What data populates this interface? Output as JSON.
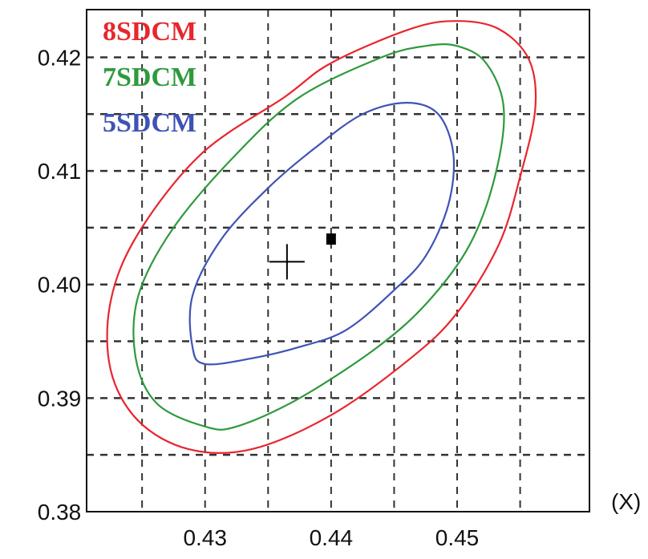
{
  "chart_data": {
    "type": "scatter",
    "xlabel": "(X)",
    "ylabel": "",
    "xlim": [
      0.4206,
      0.4605
    ],
    "ylim": [
      0.38,
      0.4242
    ],
    "x_ticks": [
      0.43,
      0.44,
      0.45
    ],
    "x_tick_labels": [
      "0.43",
      "0.44",
      "0.45"
    ],
    "y_ticks": [
      0.38,
      0.39,
      0.4,
      0.41,
      0.42
    ],
    "y_tick_labels": [
      "0.38",
      "0.39",
      "0.40",
      "0.41",
      "0.42"
    ],
    "grid": true,
    "grid_x": [
      0.425,
      0.43,
      0.435,
      0.44,
      0.445,
      0.45,
      0.455
    ],
    "grid_y": [
      0.385,
      0.39,
      0.395,
      0.4,
      0.405,
      0.41,
      0.415,
      0.42
    ],
    "legend_position": "top-left",
    "series": [
      {
        "name": "8SDCM",
        "color": "#e8262d",
        "shape": "ellipse",
        "points": [
          [
            0.4533,
            0.4225
          ],
          [
            0.4557,
            0.4198
          ],
          [
            0.4562,
            0.4155
          ],
          [
            0.455,
            0.4095
          ],
          [
            0.4533,
            0.4035
          ],
          [
            0.45,
            0.3975
          ],
          [
            0.4463,
            0.3935
          ],
          [
            0.44,
            0.3885
          ],
          [
            0.4337,
            0.3855
          ],
          [
            0.4287,
            0.3855
          ],
          [
            0.4247,
            0.388
          ],
          [
            0.4225,
            0.3925
          ],
          [
            0.4225,
            0.3985
          ],
          [
            0.4247,
            0.4045
          ],
          [
            0.4297,
            0.4115
          ],
          [
            0.4363,
            0.4165
          ],
          [
            0.44,
            0.4195
          ],
          [
            0.4463,
            0.4225
          ],
          [
            0.45,
            0.4232
          ],
          [
            0.4533,
            0.4225
          ]
        ]
      },
      {
        "name": "7SDCM",
        "color": "#2e9a3d",
        "shape": "ellipse",
        "points": [
          [
            0.45,
            0.421
          ],
          [
            0.4523,
            0.4195
          ],
          [
            0.4537,
            0.4155
          ],
          [
            0.453,
            0.4095
          ],
          [
            0.451,
            0.4035
          ],
          [
            0.4477,
            0.3985
          ],
          [
            0.4437,
            0.3945
          ],
          [
            0.4375,
            0.39
          ],
          [
            0.4325,
            0.3875
          ],
          [
            0.43,
            0.3875
          ],
          [
            0.4262,
            0.3895
          ],
          [
            0.4245,
            0.3935
          ],
          [
            0.4247,
            0.399
          ],
          [
            0.4275,
            0.405
          ],
          [
            0.4325,
            0.4115
          ],
          [
            0.4375,
            0.4165
          ],
          [
            0.444,
            0.42
          ],
          [
            0.4475,
            0.421
          ],
          [
            0.45,
            0.421
          ]
        ]
      },
      {
        "name": "5SDCM",
        "color": "#3f53b5",
        "shape": "ellipse",
        "points": [
          [
            0.446,
            0.416
          ],
          [
            0.4485,
            0.415
          ],
          [
            0.4497,
            0.4115
          ],
          [
            0.4493,
            0.407
          ],
          [
            0.4475,
            0.4025
          ],
          [
            0.445,
            0.3995
          ],
          [
            0.4412,
            0.396
          ],
          [
            0.4375,
            0.3945
          ],
          [
            0.4337,
            0.3935
          ],
          [
            0.43,
            0.393
          ],
          [
            0.429,
            0.3945
          ],
          [
            0.429,
            0.399
          ],
          [
            0.4313,
            0.404
          ],
          [
            0.435,
            0.4085
          ],
          [
            0.4387,
            0.412
          ],
          [
            0.4425,
            0.415
          ],
          [
            0.446,
            0.416
          ]
        ]
      }
    ],
    "markers": [
      {
        "name": "",
        "x": 0.4365,
        "y": 0.402,
        "symbol": "cross",
        "color": "#000000"
      },
      {
        "name": "",
        "x": 0.44,
        "y": 0.404,
        "symbol": "square",
        "color": "#000000"
      }
    ]
  }
}
